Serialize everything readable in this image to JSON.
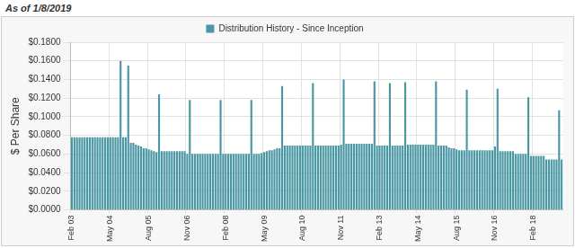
{
  "chart_data": {
    "type": "bar",
    "subtitle": "As of 1/8/2019",
    "y_label": "$ Per Share",
    "legend": "top",
    "grid": true,
    "categories": [
      "Feb 03",
      null,
      null,
      null,
      null,
      null,
      null,
      null,
      null,
      null,
      null,
      null,
      null,
      null,
      null,
      "May 04",
      null,
      null,
      null,
      null,
      null,
      null,
      null,
      null,
      null,
      null,
      null,
      null,
      null,
      null,
      "Aug 05",
      null,
      null,
      null,
      null,
      null,
      null,
      null,
      null,
      null,
      null,
      null,
      null,
      null,
      null,
      "Nov 06",
      null,
      null,
      null,
      null,
      null,
      null,
      null,
      null,
      null,
      null,
      null,
      null,
      null,
      null,
      "Feb 08",
      null,
      null,
      null,
      null,
      null,
      null,
      null,
      null,
      null,
      null,
      null,
      null,
      null,
      null,
      "May 09",
      null,
      null,
      null,
      null,
      null,
      null,
      null,
      null,
      null,
      null,
      null,
      null,
      null,
      null,
      "Aug 10",
      null,
      null,
      null,
      null,
      null,
      null,
      null,
      null,
      null,
      null,
      null,
      null,
      null,
      null,
      "Nov 11",
      null,
      null,
      null,
      null,
      null,
      null,
      null,
      null,
      null,
      null,
      null,
      null,
      null,
      null,
      "Feb 13",
      null,
      null,
      null,
      null,
      null,
      null,
      null,
      null,
      null,
      null,
      null,
      null,
      null,
      null,
      "May 14",
      null,
      null,
      null,
      null,
      null,
      null,
      null,
      null,
      null,
      null,
      null,
      null,
      null,
      null,
      "Aug 15",
      null,
      null,
      null,
      null,
      null,
      null,
      null,
      null,
      null,
      null,
      null,
      null,
      null,
      null,
      "Nov 16",
      null,
      null,
      null,
      null,
      null,
      null,
      null,
      null,
      null,
      null,
      null,
      null,
      null,
      null,
      "Feb 18",
      null,
      null,
      null,
      null,
      null,
      null,
      null,
      null,
      null,
      null,
      null
    ],
    "series": [
      {
        "name": "Distribution History - Since Inception",
        "color": "#4a97a4",
        "values": [
          0.078,
          0.078,
          0.078,
          0.078,
          0.078,
          0.078,
          0.078,
          0.078,
          0.078,
          0.078,
          0.078,
          0.078,
          0.078,
          0.078,
          0.078,
          0.078,
          0.078,
          0.078,
          0.078,
          0.16,
          0.078,
          0.078,
          0.155,
          0.072,
          0.072,
          0.07,
          0.069,
          0.068,
          0.066,
          0.066,
          0.065,
          0.064,
          0.063,
          0.062,
          0.124,
          0.063,
          0.063,
          0.063,
          0.063,
          0.063,
          0.063,
          0.063,
          0.063,
          0.063,
          0.063,
          0.06,
          0.118,
          0.06,
          0.06,
          0.06,
          0.06,
          0.06,
          0.06,
          0.06,
          0.06,
          0.06,
          0.06,
          0.06,
          0.118,
          0.06,
          0.06,
          0.06,
          0.06,
          0.06,
          0.06,
          0.06,
          0.06,
          0.06,
          0.06,
          0.06,
          0.118,
          0.06,
          0.06,
          0.06,
          0.061,
          0.062,
          0.063,
          0.064,
          0.064,
          0.065,
          0.066,
          0.066,
          0.133,
          0.069,
          0.069,
          0.069,
          0.069,
          0.069,
          0.069,
          0.069,
          0.069,
          0.069,
          0.069,
          0.069,
          0.136,
          0.069,
          0.069,
          0.069,
          0.069,
          0.069,
          0.069,
          0.069,
          0.069,
          0.069,
          0.069,
          0.07,
          0.14,
          0.071,
          0.071,
          0.071,
          0.071,
          0.071,
          0.071,
          0.071,
          0.071,
          0.071,
          0.071,
          0.071,
          0.138,
          0.069,
          0.069,
          0.069,
          0.069,
          0.069,
          0.136,
          0.069,
          0.069,
          0.069,
          0.069,
          0.069,
          0.137,
          0.07,
          0.07,
          0.07,
          0.07,
          0.07,
          0.07,
          0.07,
          0.07,
          0.07,
          0.07,
          0.07,
          0.138,
          0.069,
          0.069,
          0.069,
          0.069,
          0.067,
          0.066,
          0.066,
          0.065,
          0.064,
          0.064,
          0.064,
          0.129,
          0.064,
          0.064,
          0.064,
          0.064,
          0.064,
          0.064,
          0.064,
          0.064,
          0.064,
          0.064,
          0.068,
          0.13,
          0.063,
          0.063,
          0.063,
          0.063,
          0.063,
          0.063,
          0.06,
          0.06,
          0.06,
          0.06,
          0.06,
          0.121,
          0.058,
          0.058,
          0.058,
          0.058,
          0.058,
          0.058,
          0.054,
          0.054,
          0.054,
          0.054,
          0.054,
          0.107,
          0.054
        ]
      }
    ],
    "ylim": [
      0,
      0.18
    ],
    "yticks": [
      {
        "value": 0,
        "label": "$0.0000"
      },
      {
        "value": 0.02,
        "label": "$0.0200"
      },
      {
        "value": 0.04,
        "label": "$0.0400"
      },
      {
        "value": 0.06,
        "label": "$0.0600"
      },
      {
        "value": 0.08,
        "label": "$0.0800"
      },
      {
        "value": 0.1,
        "label": "$0.1000"
      },
      {
        "value": 0.12,
        "label": "$0.1200"
      },
      {
        "value": 0.14,
        "label": "$0.1400"
      },
      {
        "value": 0.16,
        "label": "$0.1600"
      },
      {
        "value": 0.18,
        "label": "$0.1800"
      }
    ]
  }
}
